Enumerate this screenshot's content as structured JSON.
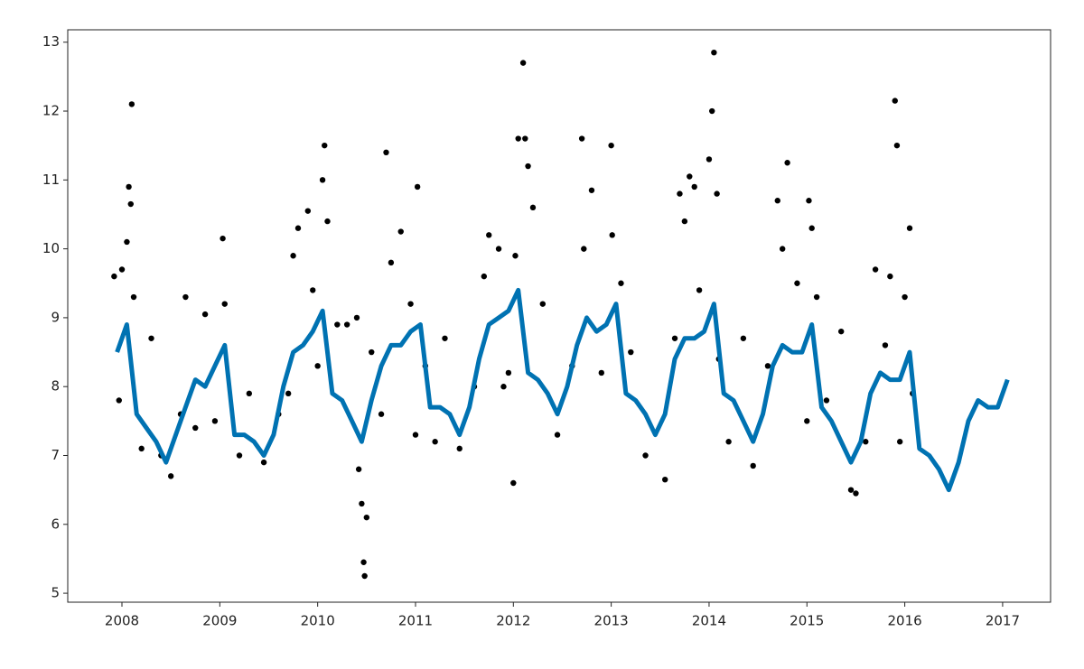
{
  "chart_data": {
    "type": "line",
    "xlim": [
      2007.446,
      2017.49
    ],
    "ylim": [
      4.87,
      13.18
    ],
    "xticks": [
      2008,
      2009,
      2010,
      2011,
      2012,
      2013,
      2014,
      2015,
      2016,
      2017
    ],
    "yticks": [
      5,
      6,
      7,
      8,
      9,
      10,
      11,
      12,
      13
    ],
    "points": {
      "color": "#000000",
      "x": [
        2007.92,
        2007.97,
        2008.0,
        2008.05,
        2008.07,
        2008.1,
        2008.09,
        2008.12,
        2008.2,
        2008.3,
        2008.4,
        2008.5,
        2008.6,
        2008.65,
        2008.75,
        2008.85,
        2008.95,
        2009.03,
        2009.05,
        2009.2,
        2009.3,
        2009.45,
        2009.6,
        2009.7,
        2009.75,
        2009.8,
        2009.9,
        2009.95,
        2010.0,
        2010.05,
        2010.07,
        2010.1,
        2010.2,
        2010.3,
        2010.4,
        2010.42,
        2010.45,
        2010.47,
        2010.48,
        2010.5,
        2010.55,
        2010.65,
        2010.7,
        2010.75,
        2010.85,
        2010.95,
        2011.0,
        2011.02,
        2011.1,
        2011.2,
        2011.3,
        2011.45,
        2011.6,
        2011.7,
        2011.75,
        2011.85,
        2011.9,
        2011.95,
        2012.0,
        2012.02,
        2012.05,
        2012.1,
        2012.12,
        2012.15,
        2012.2,
        2012.3,
        2012.45,
        2012.6,
        2012.7,
        2012.72,
        2012.8,
        2012.9,
        2013.0,
        2013.01,
        2013.1,
        2013.2,
        2013.35,
        2013.55,
        2013.65,
        2013.7,
        2013.75,
        2013.8,
        2013.85,
        2013.9,
        2014.0,
        2014.03,
        2014.05,
        2014.08,
        2014.1,
        2014.2,
        2014.35,
        2014.45,
        2014.6,
        2014.7,
        2014.75,
        2014.8,
        2014.9,
        2015.0,
        2015.02,
        2015.05,
        2015.1,
        2015.2,
        2015.35,
        2015.45,
        2015.5,
        2015.6,
        2015.7,
        2015.8,
        2015.85,
        2015.9,
        2015.92,
        2015.95,
        2016.0,
        2016.05,
        2016.08
      ],
      "y": [
        9.6,
        7.8,
        9.7,
        10.1,
        10.9,
        12.1,
        10.65,
        9.3,
        7.1,
        8.7,
        7.0,
        6.7,
        7.6,
        9.3,
        7.4,
        9.05,
        7.5,
        10.15,
        9.2,
        7.0,
        7.9,
        6.9,
        7.6,
        7.9,
        9.9,
        10.3,
        10.55,
        9.4,
        8.3,
        11.0,
        11.5,
        10.4,
        8.9,
        8.9,
        9.0,
        6.8,
        6.3,
        5.45,
        5.25,
        6.1,
        8.5,
        7.6,
        11.4,
        9.8,
        10.25,
        9.2,
        7.3,
        10.9,
        8.3,
        7.2,
        8.7,
        7.1,
        8.0,
        9.6,
        10.2,
        10.0,
        8.0,
        8.2,
        6.6,
        9.9,
        11.6,
        12.7,
        11.6,
        11.2,
        10.6,
        9.2,
        7.3,
        8.3,
        11.6,
        10.0,
        10.85,
        8.2,
        11.5,
        10.2,
        9.5,
        8.5,
        7.0,
        6.65,
        8.7,
        10.8,
        10.4,
        11.05,
        10.9,
        9.4,
        11.3,
        12.0,
        12.85,
        10.8,
        8.4,
        7.2,
        8.7,
        6.85,
        8.3,
        10.7,
        10.0,
        11.25,
        9.5,
        7.5,
        10.7,
        10.3,
        9.3,
        7.8,
        8.8,
        6.5,
        6.45,
        7.2,
        9.7,
        8.6,
        9.6,
        12.15,
        11.5,
        7.2,
        9.3,
        10.3,
        7.9
      ]
    },
    "line": {
      "color": "#0072B2",
      "x": [
        2007.95,
        2008.05,
        2008.15,
        2008.25,
        2008.35,
        2008.45,
        2008.55,
        2008.65,
        2008.75,
        2008.85,
        2008.95,
        2009.05,
        2009.15,
        2009.25,
        2009.35,
        2009.45,
        2009.55,
        2009.65,
        2009.75,
        2009.85,
        2009.95,
        2010.05,
        2010.15,
        2010.25,
        2010.35,
        2010.45,
        2010.55,
        2010.65,
        2010.75,
        2010.85,
        2010.95,
        2011.05,
        2011.15,
        2011.25,
        2011.35,
        2011.45,
        2011.55,
        2011.65,
        2011.75,
        2011.85,
        2011.95,
        2012.05,
        2012.15,
        2012.25,
        2012.35,
        2012.45,
        2012.55,
        2012.65,
        2012.75,
        2012.85,
        2012.95,
        2013.05,
        2013.15,
        2013.25,
        2013.35,
        2013.45,
        2013.55,
        2013.65,
        2013.75,
        2013.85,
        2013.95,
        2014.05,
        2014.15,
        2014.25,
        2014.35,
        2014.45,
        2014.55,
        2014.65,
        2014.75,
        2014.85,
        2014.95,
        2015.05,
        2015.15,
        2015.25,
        2015.35,
        2015.45,
        2015.55,
        2015.65,
        2015.75,
        2015.85,
        2015.95,
        2016.05,
        2016.15,
        2016.25,
        2016.35,
        2016.45,
        2016.55,
        2016.65,
        2016.75,
        2016.85,
        2016.95,
        2017.05
      ],
      "values": [
        8.5,
        8.9,
        7.6,
        7.4,
        7.2,
        6.9,
        7.3,
        7.7,
        8.1,
        8.0,
        8.3,
        8.6,
        7.3,
        7.3,
        7.2,
        7.0,
        7.3,
        8.0,
        8.5,
        8.6,
        8.8,
        9.1,
        7.9,
        7.8,
        7.5,
        7.2,
        7.8,
        8.3,
        8.6,
        8.6,
        8.8,
        8.9,
        7.7,
        7.7,
        7.6,
        7.3,
        7.7,
        8.4,
        8.9,
        9.0,
        9.1,
        9.4,
        8.2,
        8.1,
        7.9,
        7.6,
        8.0,
        8.6,
        9.0,
        8.8,
        8.9,
        9.2,
        7.9,
        7.8,
        7.6,
        7.3,
        7.6,
        8.4,
        8.7,
        8.7,
        8.8,
        9.2,
        7.9,
        7.8,
        7.5,
        7.2,
        7.6,
        8.3,
        8.6,
        8.5,
        8.5,
        8.9,
        7.7,
        7.5,
        7.2,
        6.9,
        7.2,
        7.9,
        8.2,
        8.1,
        8.1,
        8.5,
        7.1,
        7.0,
        6.8,
        6.5,
        6.9,
        7.5,
        7.8,
        7.7,
        7.7,
        8.1
      ]
    }
  }
}
